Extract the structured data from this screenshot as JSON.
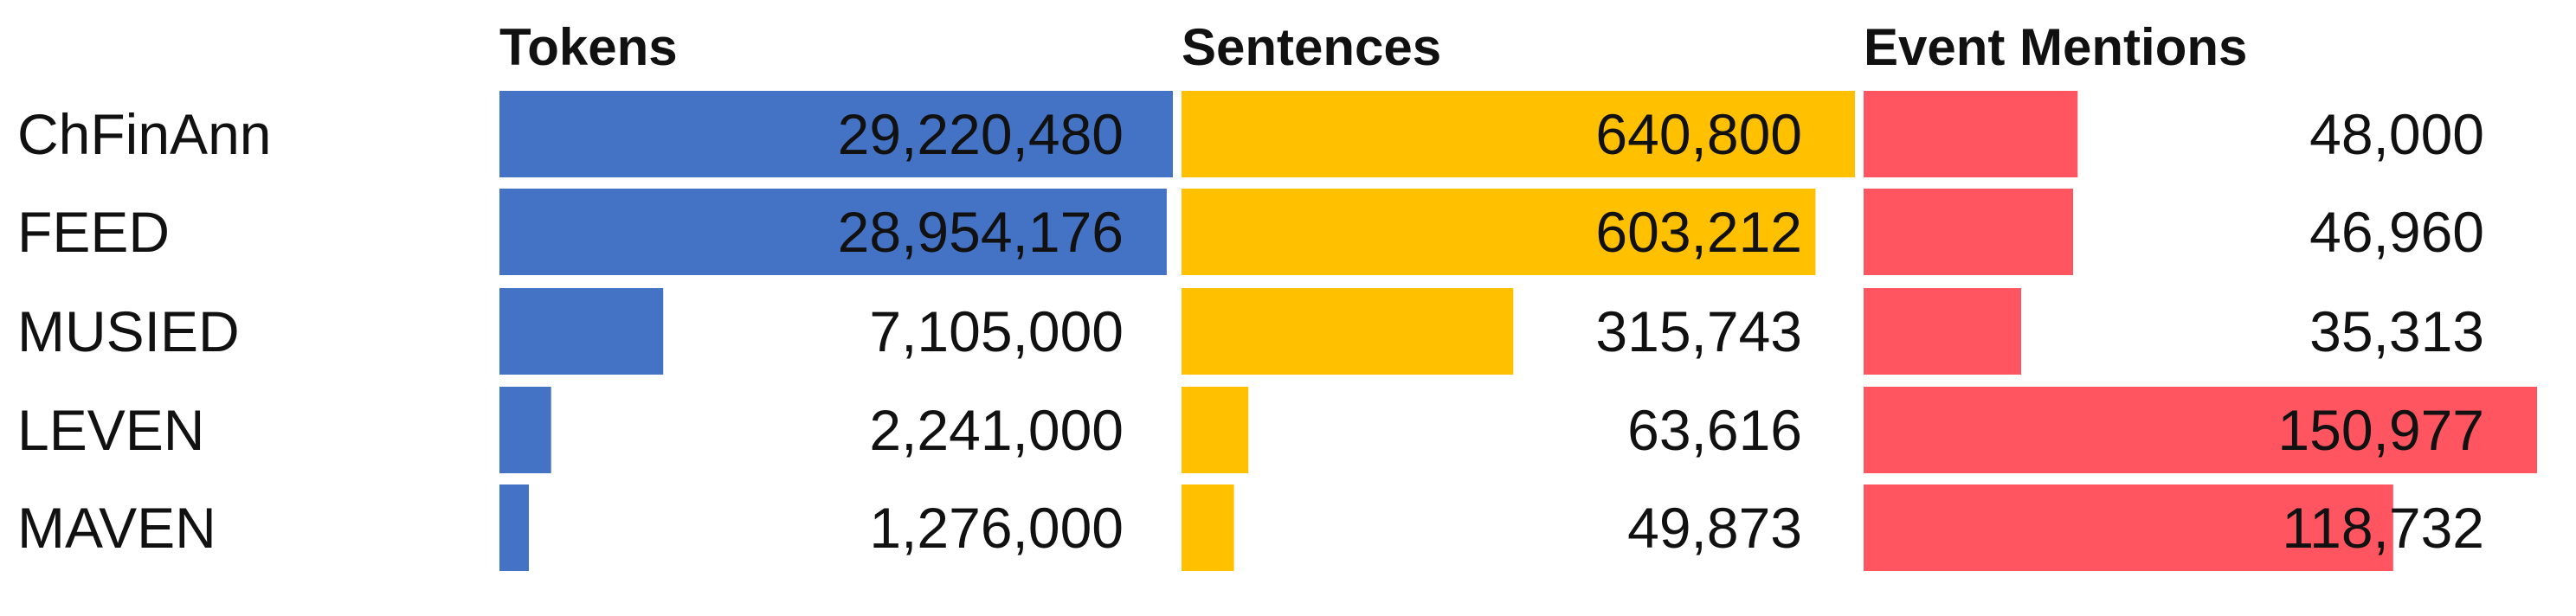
{
  "chart_data": {
    "type": "bar",
    "categories": [
      "ChFinAnn",
      "FEED",
      "MUSIED",
      "LEVEN",
      "MAVEN"
    ],
    "series": [
      {
        "name": "Tokens",
        "color": "#4472C4",
        "values": [
          29220480,
          28954176,
          7105000,
          2241000,
          1276000
        ],
        "labels": [
          "29,220,480",
          "28,954,176",
          "7,105,000",
          "2,241,000",
          "1,276,000"
        ]
      },
      {
        "name": "Sentences",
        "color": "#FFC000",
        "values": [
          640800,
          603212,
          315743,
          63616,
          49873
        ],
        "labels": [
          "640,800",
          "603,212",
          "315,743",
          "63,616",
          "49,873"
        ]
      },
      {
        "name": "Event Mentions",
        "color": "#FF5561",
        "values": [
          48000,
          46960,
          35313,
          150977,
          118732
        ],
        "labels": [
          "48,000",
          "46,960",
          "35,313",
          "150,977",
          "118,732"
        ]
      }
    ],
    "orientation": "horizontal",
    "legend": "none",
    "grid": false
  }
}
